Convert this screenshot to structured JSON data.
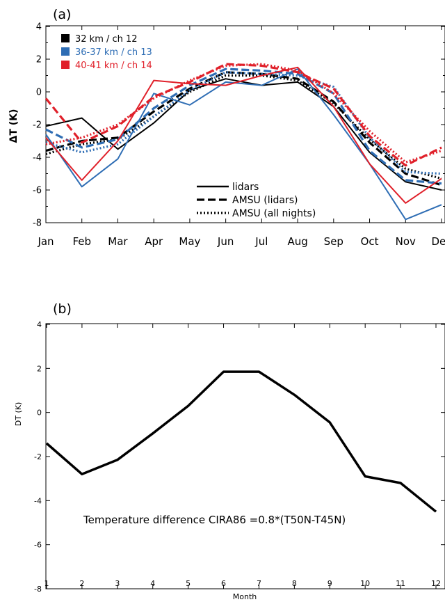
{
  "chart_data": [
    {
      "type": "line",
      "panel_label": "(a)",
      "ylabel": "ΔT (K)",
      "xlabel": "",
      "categories": [
        "Jan",
        "Feb",
        "Mar",
        "Apr",
        "May",
        "Jun",
        "Jul",
        "Aug",
        "Sep",
        "Oct",
        "Nov",
        "Dec"
      ],
      "ylim": [
        -8,
        4
      ],
      "yticks": [
        -8,
        -6,
        -4,
        -2,
        0,
        2,
        4
      ],
      "legend_placement": "top-left",
      "legend_channels": [
        {
          "label": "32 km / ch 12",
          "color": "#000000"
        },
        {
          "label": "36-37 km / ch 13",
          "color": "#2e6db4"
        },
        {
          "label": "40-41 km / ch 14",
          "color": "#e0202a"
        }
      ],
      "legend_styles": [
        {
          "label": "lidars",
          "style": "solid"
        },
        {
          "label": "AMSU (lidars)",
          "style": "dashed"
        },
        {
          "label": "AMSU (all nights)",
          "style": "dotted"
        }
      ],
      "series": [
        {
          "name": "32 km / ch 12",
          "color": "#000000",
          "style": "solid",
          "values": [
            -2.1,
            -1.6,
            -3.5,
            -1.9,
            0.1,
            0.8,
            0.4,
            0.6,
            -0.9,
            -3.7,
            -5.5,
            -6.0
          ]
        },
        {
          "name": "32 km / ch 12",
          "color": "#000000",
          "style": "dashed",
          "values": [
            -3.6,
            -3.0,
            -2.8,
            -1.2,
            0.2,
            1.2,
            1.1,
            0.8,
            -0.6,
            -3.1,
            -5.0,
            -5.7
          ]
        },
        {
          "name": "32 km / ch 12",
          "color": "#000000",
          "style": "dotted",
          "values": [
            -3.8,
            -3.2,
            -2.9,
            -1.5,
            0.0,
            1.0,
            1.0,
            0.7,
            -0.7,
            -2.9,
            -4.7,
            -5.3
          ]
        },
        {
          "name": "36-37 km / ch 13",
          "color": "#2e6db4",
          "style": "solid",
          "values": [
            -2.6,
            -5.8,
            -4.1,
            -0.1,
            -0.8,
            0.6,
            0.4,
            1.4,
            -1.4,
            -4.4,
            -7.8,
            -6.9
          ]
        },
        {
          "name": "36-37 km / ch 13",
          "color": "#2e6db4",
          "style": "dashed",
          "values": [
            -2.3,
            -3.4,
            -2.9,
            -1.0,
            0.4,
            1.4,
            1.3,
            1.1,
            -0.1,
            -3.6,
            -5.4,
            -5.6
          ]
        },
        {
          "name": "36-37 km / ch 13",
          "color": "#2e6db4",
          "style": "dotted",
          "values": [
            -3.1,
            -3.7,
            -3.2,
            -1.5,
            0.1,
            1.2,
            1.1,
            1.0,
            0.3,
            -2.8,
            -4.9,
            -5.0
          ]
        },
        {
          "name": "40-41 km / ch 14",
          "color": "#e0202a",
          "style": "solid",
          "values": [
            -2.8,
            -5.4,
            -3.0,
            0.7,
            0.5,
            0.4,
            1.0,
            1.5,
            -0.9,
            -4.4,
            -6.8,
            -5.3
          ]
        },
        {
          "name": "40-41 km / ch 14",
          "color": "#e0202a",
          "style": "dashed",
          "values": [
            -0.4,
            -3.1,
            -2.1,
            -0.3,
            0.6,
            1.7,
            1.6,
            1.2,
            0.2,
            -2.7,
            -4.5,
            -3.4
          ]
        },
        {
          "name": "40-41 km / ch 14",
          "color": "#e0202a",
          "style": "dotted",
          "values": [
            -3.2,
            -2.8,
            -2.0,
            -0.4,
            0.7,
            1.6,
            1.7,
            1.3,
            -0.1,
            -2.4,
            -4.3,
            -3.6
          ]
        }
      ]
    },
    {
      "type": "line",
      "panel_label": "(b)",
      "ylabel": "DT (K)",
      "xlabel": "Month",
      "categories": [
        "1",
        "2",
        "3",
        "4",
        "5",
        "6",
        "7",
        "8",
        "9",
        "10",
        "11",
        "12"
      ],
      "ylim": [
        -8,
        4
      ],
      "yticks": [
        -8,
        -6,
        -4,
        -2,
        0,
        2,
        4
      ],
      "annotation": "Temperature difference CIRA86 =0.8*(T50N-T45N)",
      "series": [
        {
          "name": "",
          "color": "#000000",
          "style": "solid",
          "values": [
            -1.4,
            -2.8,
            -2.15,
            -0.95,
            0.3,
            1.85,
            1.85,
            0.8,
            -0.45,
            -2.9,
            -3.2,
            -4.5
          ]
        }
      ]
    }
  ]
}
